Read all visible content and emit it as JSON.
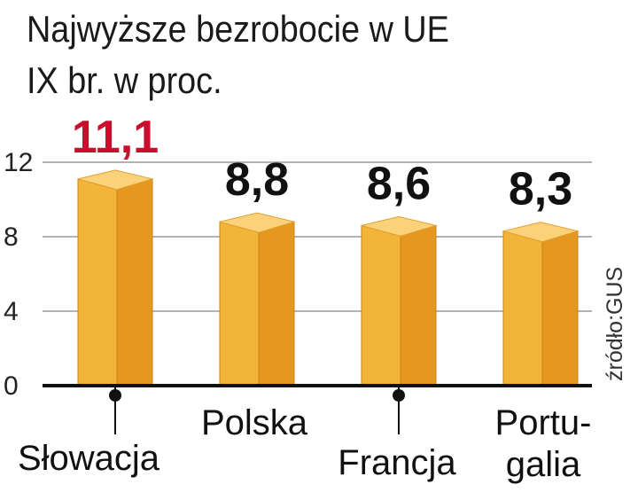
{
  "chart_data": {
    "type": "bar",
    "title": "Najwyższe bezrobocie w UE",
    "subtitle": "IX br. w proc.",
    "categories": [
      "Słowacja",
      "Polska",
      "Francja",
      "Portugalia"
    ],
    "category_lines": [
      [
        "Słowacja"
      ],
      [
        "Polska"
      ],
      [
        "Francja"
      ],
      [
        "Portu-",
        "galia"
      ]
    ],
    "values": [
      11.1,
      8.8,
      8.6,
      8.3
    ],
    "value_labels": [
      "11,1",
      "8,8",
      "8,6",
      "8,3"
    ],
    "highlight_index": 0,
    "yticks": [
      0,
      4,
      8,
      12
    ],
    "ylim": [
      0,
      12
    ],
    "grid": true,
    "source": "źródło:GUS",
    "colors": {
      "bar_front": "#f3b43a",
      "bar_side": "#e6971f",
      "bar_top": "#fbd27a",
      "highlight_label": "#c8102e",
      "label": "#111111",
      "grid": "#9a9a9a",
      "axis": "#111111"
    }
  }
}
